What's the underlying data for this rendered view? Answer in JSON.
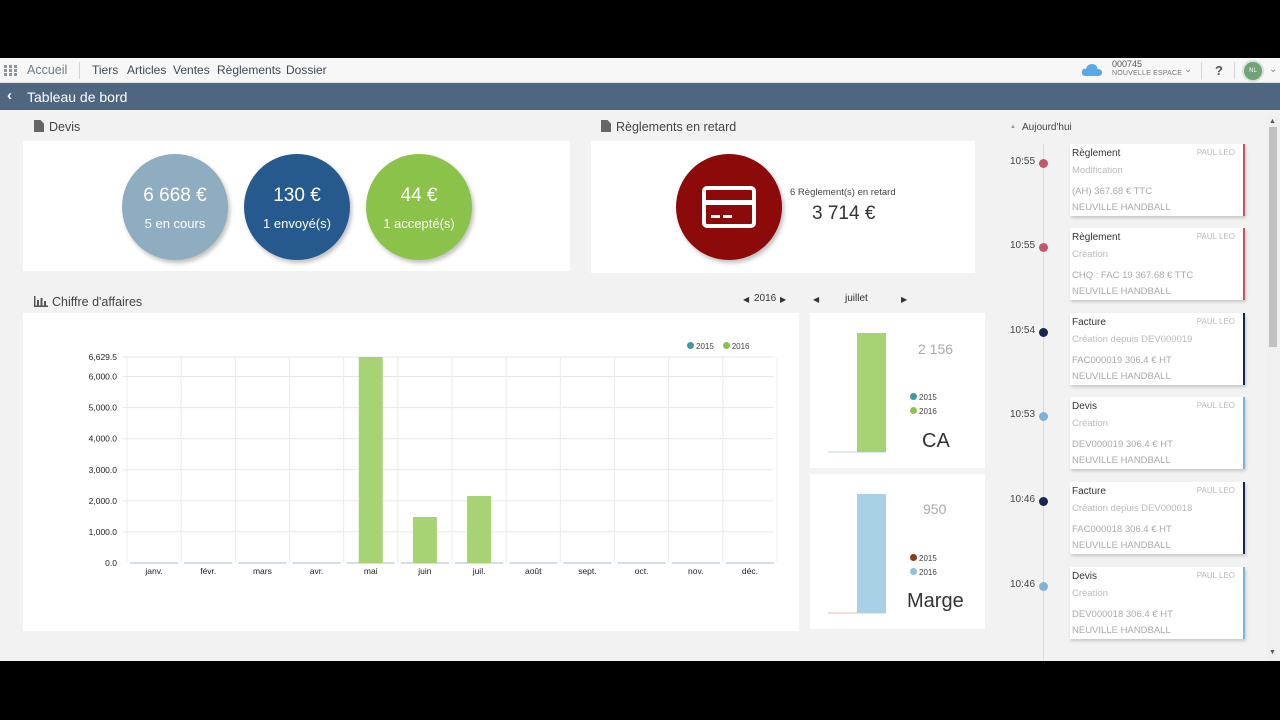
{
  "nav": {
    "home": "Accueil",
    "items": [
      "Tiers",
      "Articles",
      "Ventes",
      "Règlements",
      "Dossier"
    ],
    "account_number": "000745",
    "account_name": "NOUVELLE ESPACE",
    "help": "?",
    "avatar": "NL"
  },
  "title": {
    "back": "‹",
    "text": "Tableau de bord"
  },
  "devis": {
    "title": "Devis",
    "circles": [
      {
        "amount": "6 668 €",
        "label": "5 en cours",
        "color": "#8fadc0"
      },
      {
        "amount": "130 €",
        "label": "1 envoyé(s)",
        "color": "#265a8e"
      },
      {
        "amount": "44 €",
        "label": "1 accepté(s)",
        "color": "#8bc34a"
      }
    ]
  },
  "reglements": {
    "title": "Règlements en retard",
    "count_label": "6 Règlement(s) en retard",
    "amount": "3 714 €"
  },
  "ca": {
    "title": "Chiffre d'affaires",
    "year": "2016",
    "month": "juillet"
  },
  "chart_data": [
    {
      "type": "bar",
      "title": "Chiffre d'affaires",
      "categories": [
        "janv.",
        "févr.",
        "mars",
        "avr.",
        "mai",
        "juin",
        "juil.",
        "août",
        "sept.",
        "oct.",
        "nov.",
        "déc."
      ],
      "series": [
        {
          "name": "2015",
          "color": "#3d9aa0",
          "values": [
            0,
            0,
            0,
            0,
            0,
            0,
            0,
            0,
            0,
            0,
            0,
            0
          ]
        },
        {
          "name": "2016",
          "color": "#8bc34a",
          "values": [
            0,
            0,
            0,
            0,
            6629.5,
            1480,
            2156,
            0,
            0,
            0,
            0,
            0
          ]
        }
      ],
      "y_ticks": [
        "0.0",
        "1,000.0",
        "2,000.0",
        "3,000.0",
        "4,000.0",
        "5,000.0",
        "6,000.0",
        "6,629.5"
      ],
      "ylim": [
        0,
        6629.5
      ],
      "legend": "top-right",
      "grid": true
    },
    {
      "type": "bar",
      "title": "CA",
      "value_label": "2 156",
      "series": [
        {
          "name": "2015",
          "color": "#3d9aa0",
          "value": 0
        },
        {
          "name": "2016",
          "color": "#8bc34a",
          "value": 2156
        }
      ]
    },
    {
      "type": "bar",
      "title": "Marge",
      "value_label": "950",
      "series": [
        {
          "name": "2015",
          "color": "#8b3a1a",
          "value": 0
        },
        {
          "name": "2016",
          "color": "#8fc1dc",
          "value": 950
        }
      ]
    }
  ],
  "timeline": {
    "today": "Aujourd'hui",
    "events": [
      {
        "time": "10:55",
        "type": "Règlement",
        "user": "PAUL LEO",
        "action": "Modification",
        "detail": "(AH) 367.68 € TTC",
        "client": "NEUVILLE HANDBALL",
        "color": "#c4566b"
      },
      {
        "time": "10:55",
        "type": "Règlement",
        "user": "PAUL LEO",
        "action": "Création",
        "detail": "CHQ : FAC 19 367.68 € TTC",
        "client": "NEUVILLE HANDBALL",
        "color": "#c4566b"
      },
      {
        "time": "10:54",
        "type": "Facture",
        "user": "PAUL LEO",
        "action": "Création depuis DEV000019",
        "detail": "FAC000019 306.4 € HT",
        "client": "NEUVILLE HANDBALL",
        "color": "#15264f"
      },
      {
        "time": "10:53",
        "type": "Devis",
        "user": "PAUL LEO",
        "action": "Création",
        "detail": "DEV000019 306.4 € HT",
        "client": "NEUVILLE HANDBALL",
        "color": "#7fb2d6"
      },
      {
        "time": "10:46",
        "type": "Facture",
        "user": "PAUL LEO",
        "action": "Création depuis DEV000018",
        "detail": "FAC000018 306.4 € HT",
        "client": "NEUVILLE HANDBALL",
        "color": "#15264f"
      },
      {
        "time": "10:46",
        "type": "Devis",
        "user": "PAUL LEO",
        "action": "Création",
        "detail": "DEV000018 306.4 € HT",
        "client": "NEUVILLE HANDBALL",
        "color": "#7fb2d6"
      }
    ]
  }
}
